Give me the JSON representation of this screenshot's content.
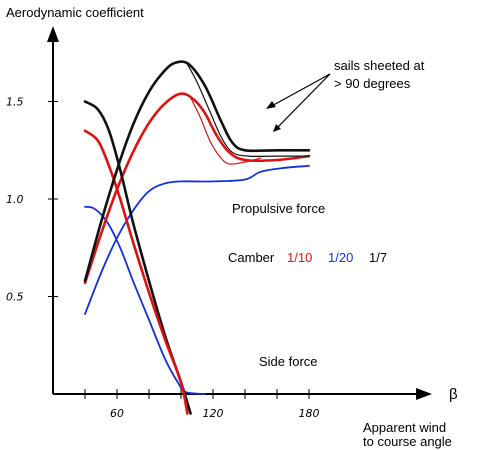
{
  "chart_data": {
    "type": "line",
    "ylabel": "Aerodynamic coefficient",
    "xlabel_symbol": "β",
    "xlabel_line1": "Apparent wind",
    "xlabel_line2": "to course angle",
    "xlim": [
      20,
      200
    ],
    "ylim": [
      0,
      1.83
    ],
    "x_ticks": [
      {
        "value": 40,
        "label": ""
      },
      {
        "value": 60,
        "label": "60"
      },
      {
        "value": 80,
        "label": ""
      },
      {
        "value": 100,
        "label": ""
      },
      {
        "value": 120,
        "label": "120"
      },
      {
        "value": 140,
        "label": ""
      },
      {
        "value": 160,
        "label": ""
      },
      {
        "value": 180,
        "label": "180"
      }
    ],
    "y_ticks": [
      {
        "value": 0.5,
        "label": "0.5"
      },
      {
        "value": 1.0,
        "label": "1.0"
      },
      {
        "value": 1.5,
        "label": "1.5"
      }
    ],
    "colors": {
      "camber_1_10": "#e01010",
      "camber_1_20": "#1030e0",
      "camber_1_7": "#111111"
    },
    "series": [
      {
        "group": "propulsive",
        "camber": "1/7",
        "color": "#111111",
        "width": 2.6,
        "points": [
          [
            40,
            0.58
          ],
          [
            50,
            0.88
          ],
          [
            60,
            1.15
          ],
          [
            70,
            1.38
          ],
          [
            80,
            1.55
          ],
          [
            90,
            1.66
          ],
          [
            97,
            1.7
          ],
          [
            105,
            1.69
          ],
          [
            115,
            1.58
          ],
          [
            125,
            1.4
          ],
          [
            132,
            1.29
          ],
          [
            140,
            1.25
          ],
          [
            160,
            1.25
          ],
          [
            180,
            1.25
          ]
        ]
      },
      {
        "group": "propulsive",
        "camber": "1/7",
        "style": "sheeted",
        "color": "#111111",
        "width": 1.2,
        "points": [
          [
            104,
            1.69
          ],
          [
            110,
            1.6
          ],
          [
            118,
            1.45
          ],
          [
            125,
            1.32
          ],
          [
            132,
            1.24
          ],
          [
            142,
            1.22
          ],
          [
            160,
            1.22
          ],
          [
            180,
            1.22
          ]
        ]
      },
      {
        "group": "propulsive",
        "camber": "1/10",
        "color": "#e01010",
        "width": 2.6,
        "points": [
          [
            40,
            0.57
          ],
          [
            50,
            0.82
          ],
          [
            60,
            1.05
          ],
          [
            70,
            1.24
          ],
          [
            80,
            1.39
          ],
          [
            90,
            1.49
          ],
          [
            100,
            1.54
          ],
          [
            108,
            1.51
          ],
          [
            115,
            1.44
          ],
          [
            122,
            1.33
          ],
          [
            130,
            1.24
          ],
          [
            140,
            1.2
          ],
          [
            160,
            1.2
          ],
          [
            180,
            1.22
          ]
        ]
      },
      {
        "group": "propulsive",
        "camber": "1/10",
        "style": "sheeted",
        "color": "#e01010",
        "width": 1.2,
        "points": [
          [
            106,
            1.52
          ],
          [
            112,
            1.42
          ],
          [
            118,
            1.3
          ],
          [
            124,
            1.22
          ],
          [
            130,
            1.18
          ],
          [
            140,
            1.19
          ],
          [
            150,
            1.21
          ]
        ]
      },
      {
        "group": "propulsive",
        "camber": "1/20",
        "color": "#1030e0",
        "width": 1.8,
        "points": [
          [
            40,
            0.41
          ],
          [
            50,
            0.62
          ],
          [
            60,
            0.8
          ],
          [
            70,
            0.94
          ],
          [
            80,
            1.04
          ],
          [
            90,
            1.08
          ],
          [
            100,
            1.09
          ],
          [
            120,
            1.09
          ],
          [
            140,
            1.1
          ],
          [
            150,
            1.14
          ],
          [
            165,
            1.16
          ],
          [
            180,
            1.17
          ]
        ]
      },
      {
        "group": "side",
        "camber": "1/7",
        "color": "#111111",
        "width": 2.6,
        "points": [
          [
            40,
            1.5
          ],
          [
            48,
            1.46
          ],
          [
            55,
            1.35
          ],
          [
            62,
            1.15
          ],
          [
            70,
            0.88
          ],
          [
            80,
            0.58
          ],
          [
            90,
            0.3
          ],
          [
            100,
            0.06
          ],
          [
            106,
            -0.1
          ]
        ]
      },
      {
        "group": "side",
        "camber": "1/10",
        "color": "#e01010",
        "width": 2.6,
        "points": [
          [
            40,
            1.35
          ],
          [
            48,
            1.3
          ],
          [
            55,
            1.17
          ],
          [
            62,
            1.0
          ],
          [
            70,
            0.78
          ],
          [
            80,
            0.52
          ],
          [
            90,
            0.28
          ],
          [
            100,
            0.06
          ],
          [
            104,
            -0.1
          ]
        ]
      },
      {
        "group": "side",
        "camber": "1/20",
        "color": "#1030e0",
        "width": 1.8,
        "points": [
          [
            40,
            0.96
          ],
          [
            46,
            0.95
          ],
          [
            54,
            0.88
          ],
          [
            62,
            0.75
          ],
          [
            70,
            0.58
          ],
          [
            80,
            0.38
          ],
          [
            90,
            0.18
          ],
          [
            98,
            0.06
          ],
          [
            103,
            0.01
          ],
          [
            115,
            0.0
          ]
        ]
      }
    ],
    "annotations": {
      "sails_line1": "sails sheeted at",
      "sails_line2": "> 90 degrees",
      "propulsive": "Propulsive force",
      "side": "Side force",
      "camber_label": "Camber",
      "camber_1_10": "1/10",
      "camber_1_20": "1/20",
      "camber_1_7": "1/7"
    }
  }
}
